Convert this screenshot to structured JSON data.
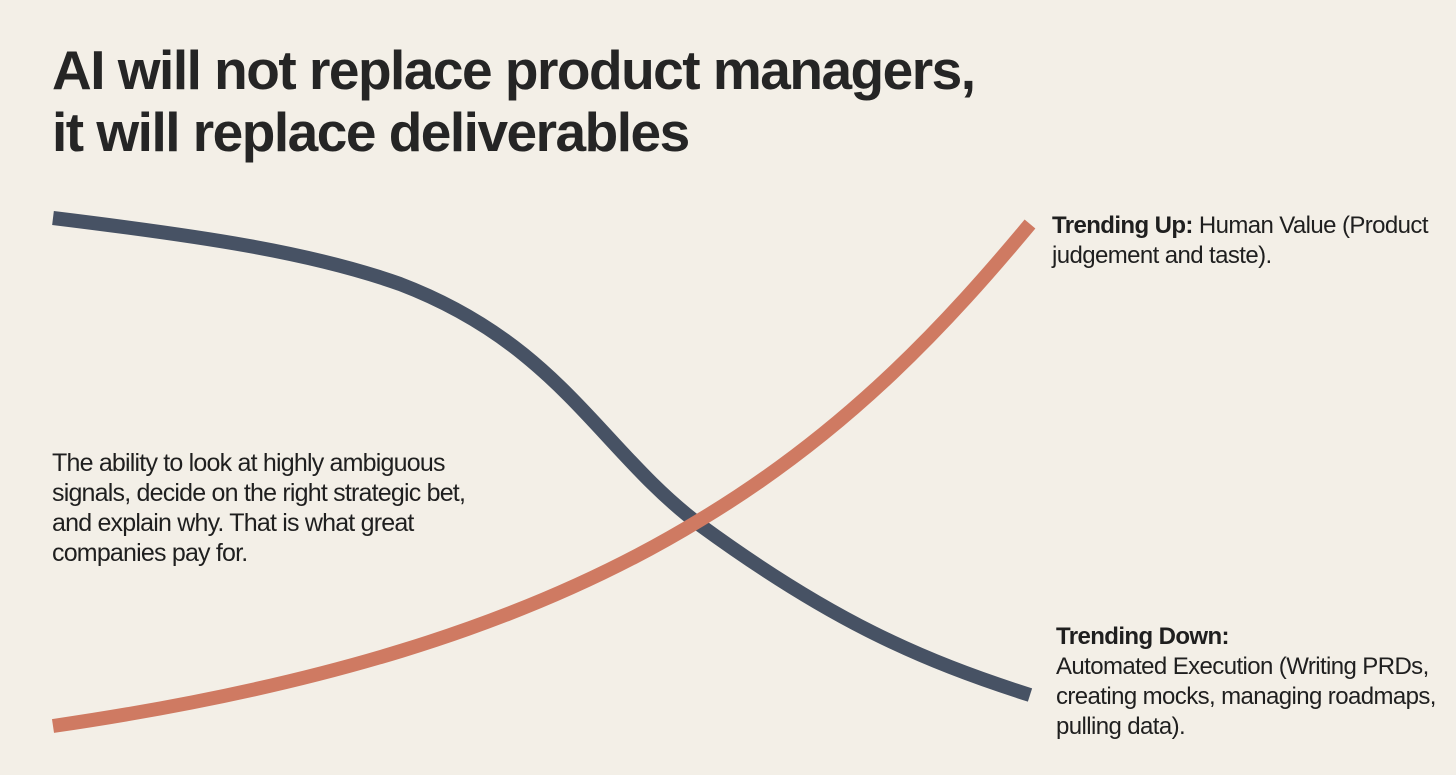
{
  "title": {
    "line1": "AI will not replace product managers,",
    "line2": "it will replace deliverables"
  },
  "colors": {
    "background": "#f3efe7",
    "trending_down_curve": "#475264",
    "trending_up_curve": "#cf7a62",
    "text": "#232323"
  },
  "trending_up": {
    "heading": "Trending Up:",
    "text": "Human Value (Product judgement and taste)."
  },
  "trending_down": {
    "heading": "Trending Down:",
    "text": "Automated Execution (Writing PRDs, creating mocks, managing roadmaps, pulling data)."
  },
  "body_text": "The ability to look at highly ambiguous signals, decide on the right strategic bet, and explain why. That is what great companies pay for."
}
